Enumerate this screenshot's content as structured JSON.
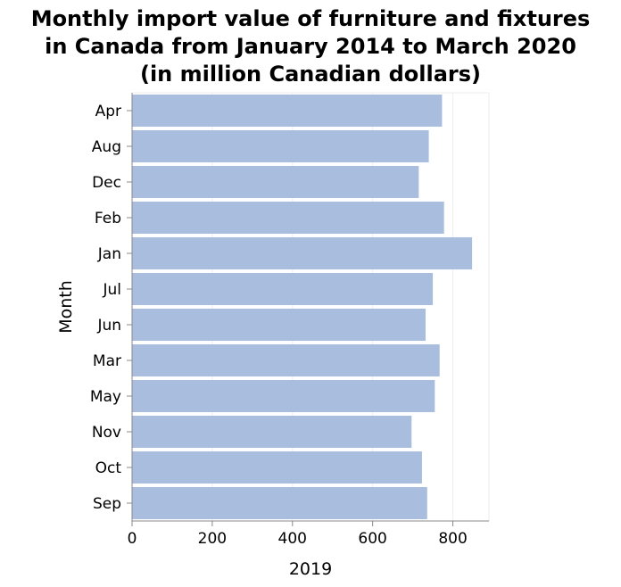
{
  "chart_data": {
    "type": "bar",
    "orientation": "horizontal",
    "title_lines": [
      "Monthly import value of furniture and fixtures",
      "in Canada from January 2014 to March 2020",
      "(in million Canadian dollars)"
    ],
    "xlabel": "2019",
    "ylabel": "Month",
    "categories": [
      "Apr",
      "Aug",
      "Dec",
      "Feb",
      "Jan",
      "Jul",
      "Jun",
      "Mar",
      "May",
      "Nov",
      "Oct",
      "Sep"
    ],
    "values": [
      773,
      740,
      715,
      778,
      848,
      750,
      732,
      767,
      755,
      697,
      723,
      736
    ],
    "xlim": [
      0,
      890
    ],
    "xticks": [
      0,
      200,
      400,
      600,
      800
    ],
    "grid": true,
    "bar_color": "#a9bedf"
  }
}
